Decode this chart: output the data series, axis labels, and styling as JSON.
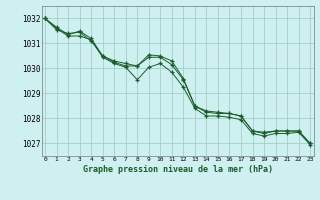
{
  "title": "Graphe pression niveau de la mer (hPa)",
  "bg_color": "#cff0f0",
  "grid_color": "#99ccbb",
  "line_color": "#1a5c2a",
  "x_ticks": [
    0,
    1,
    2,
    3,
    4,
    5,
    6,
    7,
    8,
    9,
    10,
    11,
    12,
    13,
    14,
    15,
    16,
    17,
    18,
    19,
    20,
    21,
    22,
    23
  ],
  "ylim": [
    1026.5,
    1032.5
  ],
  "xlim": [
    -0.3,
    23.3
  ],
  "yticks": [
    1027,
    1028,
    1029,
    1030,
    1031,
    1032
  ],
  "series": [
    [
      1032.0,
      1031.65,
      1031.35,
      1031.5,
      1031.2,
      1030.5,
      1030.3,
      1030.2,
      1030.1,
      1030.55,
      1030.5,
      1030.3,
      1029.6,
      1028.5,
      1028.25,
      1028.2,
      1028.2,
      1028.1,
      1027.5,
      1027.4,
      1027.5,
      1027.5,
      1027.5,
      1027.0
    ],
    [
      1032.0,
      1031.6,
      1031.3,
      1031.3,
      1031.15,
      1030.45,
      1030.2,
      1030.05,
      1029.55,
      1030.05,
      1030.2,
      1029.85,
      1029.25,
      1028.4,
      1028.1,
      1028.1,
      1028.05,
      1027.95,
      1027.4,
      1027.3,
      1027.4,
      1027.4,
      1027.45,
      1026.95
    ],
    [
      1032.0,
      1031.55,
      1031.4,
      1031.45,
      1031.1,
      1030.5,
      1030.25,
      1030.1,
      1030.1,
      1030.45,
      1030.45,
      1030.15,
      1029.55,
      1028.5,
      1028.3,
      1028.25,
      1028.2,
      1028.1,
      1027.5,
      1027.45,
      1027.5,
      1027.5,
      1027.5,
      1027.0
    ]
  ]
}
